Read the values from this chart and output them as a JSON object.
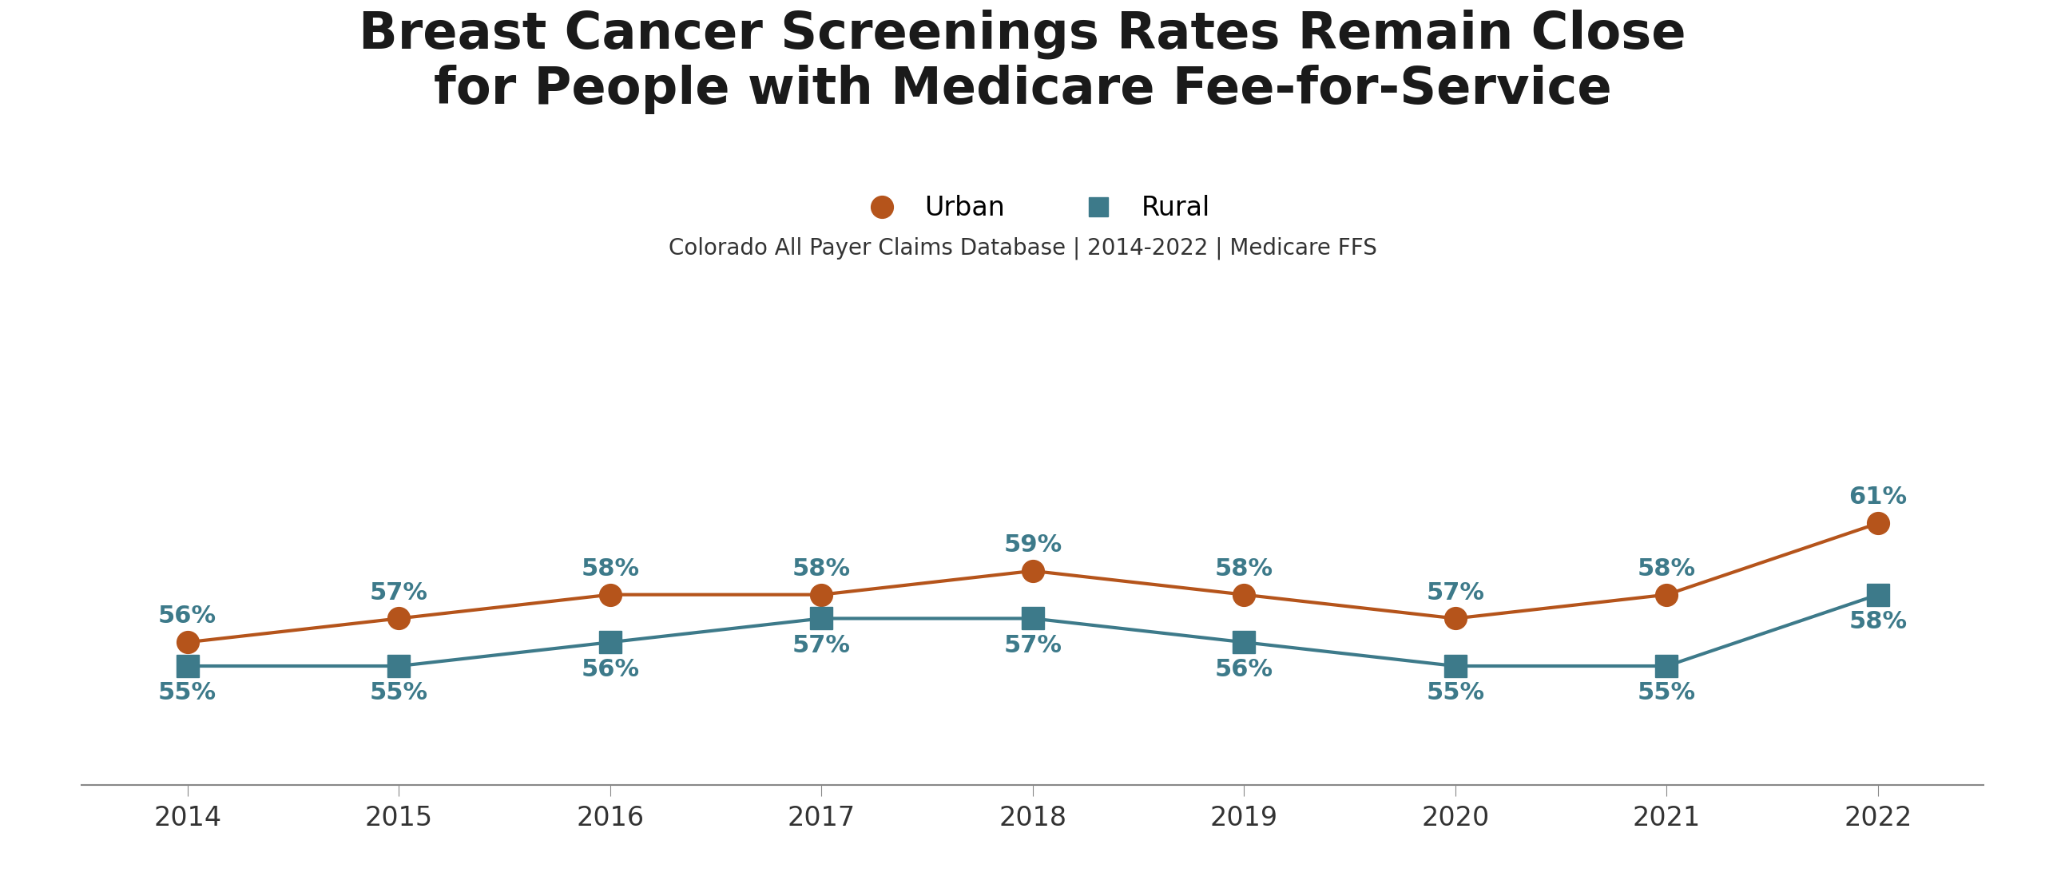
{
  "title_line1": "Breast Cancer Screenings Rates Remain Close",
  "title_line2": "for People with Medicare Fee-for-Service",
  "subtitle": "Colorado All Payer Claims Database | 2014-2022 | Medicare FFS",
  "years": [
    2014,
    2015,
    2016,
    2017,
    2018,
    2019,
    2020,
    2021,
    2022
  ],
  "urban_values": [
    56,
    57,
    58,
    58,
    59,
    58,
    57,
    58,
    61
  ],
  "rural_values": [
    55,
    55,
    56,
    57,
    57,
    56,
    55,
    55,
    58
  ],
  "urban_color": "#B5541B",
  "rural_color": "#3D7A8A",
  "background_color": "#FFFFFF",
  "urban_label": "Urban",
  "rural_label": "Rural",
  "ylim": [
    50,
    65
  ],
  "title_fontsize": 46,
  "subtitle_fontsize": 20,
  "tick_fontsize": 24,
  "annotation_fontsize": 22,
  "legend_fontsize": 24,
  "line_width": 3.0,
  "urban_marker": "o",
  "rural_marker": "s",
  "marker_size": 20
}
